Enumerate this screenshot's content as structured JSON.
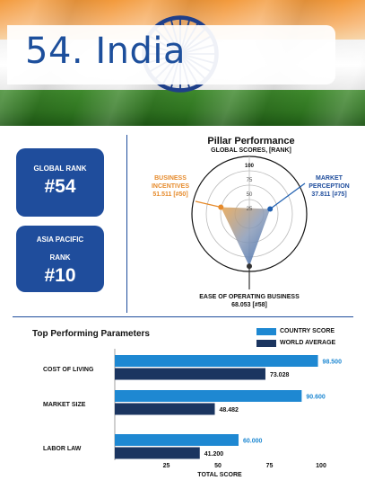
{
  "header": {
    "title": "54. India",
    "flag_colors": {
      "saffron": "#f39a3c",
      "white": "#ffffff",
      "green": "#2f7420",
      "chakra": "#1f3f8a"
    }
  },
  "ranks": {
    "global_label": "GLOBAL RANK",
    "global_value": "#54",
    "asia_label_line1": "ASIA PACIFIC",
    "asia_label_line2": "RANK",
    "asia_value": "#10"
  },
  "pillar": {
    "title": "Pillar Performance",
    "subtitle": "GLOBAL SCORES, [RANK]",
    "ticks": [
      "25",
      "50",
      "75",
      "100"
    ],
    "left_label_line1": "BUSINESS",
    "left_label_line2": "INCENTIVES",
    "left_value": "51.511 [#50]",
    "right_label_line1": "MARKET",
    "right_label_line2": "PERCEPTION",
    "right_value": "37.811 [#75]",
    "bottom_label": "EASE OF OPERATING BUSINESS",
    "bottom_value": "68.053 [#58]",
    "colors": {
      "business": "#e68b2c",
      "market": "#1f5fb0",
      "ease": "#333333"
    }
  },
  "chart_data": {
    "type": "bar",
    "title": "Top Performing Parameters",
    "categories": [
      "COST OF LIVING",
      "MARKET SIZE",
      "LABOR LAW"
    ],
    "series": [
      {
        "name": "COUNTRY SCORE",
        "values": [
          98.5,
          90.6,
          60.0
        ],
        "labels": [
          "98.500",
          "90.600",
          "60.000"
        ],
        "color": "#1e88d2"
      },
      {
        "name": "WORLD AVERAGE",
        "values": [
          73.028,
          48.482,
          41.2
        ],
        "labels": [
          "73.028",
          "48.482",
          "41.200"
        ],
        "color": "#1b3560"
      }
    ],
    "xlim": [
      0,
      100
    ],
    "xticks": [
      "25",
      "50",
      "75",
      "100"
    ],
    "xlabel": "TOTAL SCORE"
  }
}
